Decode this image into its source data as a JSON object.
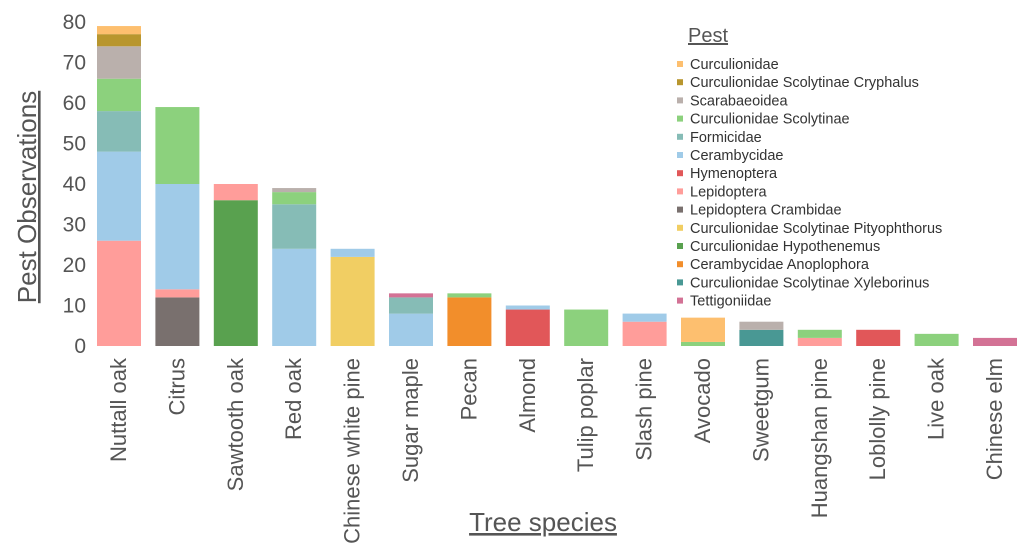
{
  "chart_data": {
    "type": "bar",
    "stacked": true,
    "title": "",
    "xlabel": "Tree species",
    "ylabel": "Pest Observations",
    "y_ticks": [
      0,
      10,
      20,
      30,
      40,
      50,
      60,
      70,
      80
    ],
    "ylim": [
      0,
      85
    ],
    "grid": false,
    "legend_title": "Pest",
    "legend_position": "top-right",
    "categories": [
      "Nuttall oak",
      "Citrus",
      "Sawtooth oak",
      "Red oak",
      "Chinese white pine",
      "Sugar maple",
      "Pecan",
      "Almond",
      "Tulip poplar",
      "Slash pine",
      "Avocado",
      "Sweetgum",
      "Huangshan pine",
      "Loblolly pine",
      "Live oak",
      "Chinese elm"
    ],
    "series": [
      {
        "name": "Curculionidae",
        "color": "#fdbf6f",
        "values": [
          2,
          0,
          0,
          0,
          0,
          0,
          0,
          0,
          0,
          0,
          6,
          0,
          0,
          0,
          0,
          0
        ]
      },
      {
        "name": "Curculionidae Scolytinae Cryphalus",
        "color": "#b8962e",
        "values": [
          3,
          0,
          0,
          0,
          0,
          0,
          0,
          0,
          0,
          0,
          0,
          0,
          0,
          0,
          0,
          0
        ]
      },
      {
        "name": "Scarabaeoidea",
        "color": "#bab0ac",
        "values": [
          8,
          0,
          0,
          1,
          0,
          0,
          0,
          0,
          0,
          0,
          0,
          2,
          0,
          0,
          0,
          0
        ]
      },
      {
        "name": "Curculionidae Scolytinae",
        "color": "#8cd17d",
        "values": [
          8,
          19,
          0,
          3,
          0,
          0,
          1,
          0,
          9,
          0,
          1,
          0,
          2,
          0,
          3,
          0
        ]
      },
      {
        "name": "Formicidae",
        "color": "#86bcb6",
        "values": [
          10,
          0,
          0,
          11,
          0,
          4,
          0,
          0,
          0,
          0,
          0,
          0,
          0,
          0,
          0,
          0
        ]
      },
      {
        "name": "Cerambycidae",
        "color": "#a0cbe8",
        "values": [
          22,
          26,
          0,
          24,
          2,
          8,
          0,
          1,
          0,
          2,
          0,
          0,
          0,
          0,
          0,
          0
        ]
      },
      {
        "name": "Hymenoptera",
        "color": "#e15759",
        "values": [
          0,
          0,
          0,
          0,
          0,
          0,
          0,
          9,
          0,
          0,
          0,
          0,
          0,
          4,
          0,
          0
        ]
      },
      {
        "name": "Lepidoptera",
        "color": "#ff9d9a",
        "values": [
          26,
          2,
          4,
          0,
          0,
          0,
          0,
          0,
          0,
          6,
          0,
          0,
          2,
          0,
          0,
          0
        ]
      },
      {
        "name": "Lepidoptera Crambidae",
        "color": "#79706e",
        "values": [
          0,
          12,
          0,
          0,
          0,
          0,
          0,
          0,
          0,
          0,
          0,
          0,
          0,
          0,
          0,
          0
        ]
      },
      {
        "name": "Curculionidae Scolytinae Pityophthorus",
        "color": "#f1ce63",
        "values": [
          0,
          0,
          0,
          0,
          22,
          0,
          0,
          0,
          0,
          0,
          0,
          0,
          0,
          0,
          0,
          0
        ]
      },
      {
        "name": "Curculionidae Hypothenemus",
        "color": "#59a14f",
        "values": [
          0,
          0,
          36,
          0,
          0,
          0,
          0,
          0,
          0,
          0,
          0,
          0,
          0,
          0,
          0,
          0
        ]
      },
      {
        "name": "Cerambycidae Anoplophora",
        "color": "#f28e2b",
        "values": [
          0,
          0,
          0,
          0,
          0,
          0,
          12,
          0,
          0,
          0,
          0,
          0,
          0,
          0,
          0,
          0
        ]
      },
      {
        "name": "Curculionidae Scolytinae Xyleborinus",
        "color": "#499894",
        "values": [
          0,
          0,
          0,
          0,
          0,
          0,
          0,
          0,
          0,
          0,
          0,
          4,
          0,
          0,
          0,
          0
        ]
      },
      {
        "name": "Tettigoniidae",
        "color": "#d37295",
        "values": [
          0,
          0,
          0,
          0,
          0,
          1,
          0,
          0,
          0,
          0,
          0,
          0,
          0,
          0,
          0,
          2
        ]
      }
    ],
    "stack_order": [
      [
        "Lepidoptera",
        "Cerambycidae",
        "Formicidae",
        "Curculionidae Scolytinae",
        "Scarabaeoidea",
        "Curculionidae Scolytinae Cryphalus",
        "Curculionidae"
      ],
      [
        "Lepidoptera Crambidae",
        "Lepidoptera",
        "Cerambycidae",
        "Curculionidae Scolytinae"
      ],
      [
        "Curculionidae Hypothenemus",
        "Lepidoptera"
      ],
      [
        "Cerambycidae",
        "Formicidae",
        "Curculionidae Scolytinae",
        "Scarabaeoidea"
      ],
      [
        "Curculionidae Scolytinae Pityophthorus",
        "Cerambycidae"
      ],
      [
        "Cerambycidae",
        "Formicidae",
        "Tettigoniidae"
      ],
      [
        "Cerambycidae Anoplophora",
        "Curculionidae Scolytinae"
      ],
      [
        "Hymenoptera",
        "Cerambycidae"
      ],
      [
        "Curculionidae Scolytinae"
      ],
      [
        "Lepidoptera",
        "Cerambycidae"
      ],
      [
        "Curculionidae Scolytinae",
        "Curculionidae"
      ],
      [
        "Curculionidae Scolytinae Xyleborinus",
        "Scarabaeoidea"
      ],
      [
        "Lepidoptera",
        "Curculionidae Scolytinae"
      ],
      [
        "Hymenoptera"
      ],
      [
        "Curculionidae Scolytinae"
      ],
      [
        "Tettigoniidae"
      ]
    ]
  }
}
